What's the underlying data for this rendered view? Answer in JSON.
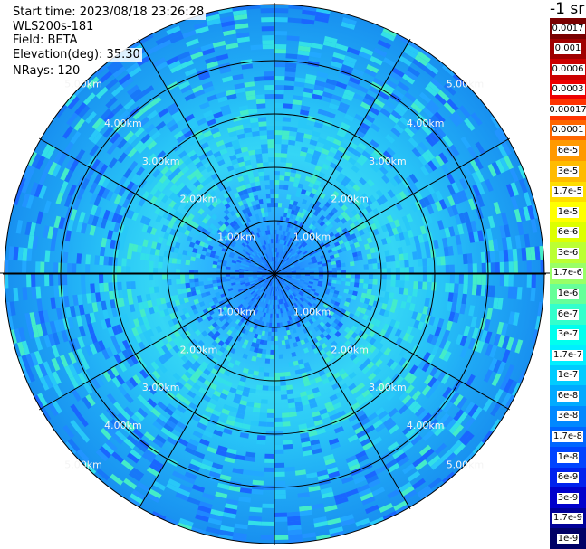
{
  "info": {
    "start_time": "Start time: 2023/08/18 23:26:28",
    "site": "WLS200s-181",
    "field": "Field: BETA",
    "elevation": "Elevation(deg): 35.30",
    "nrays": "NRays: 120"
  },
  "colorbar": {
    "unit": "-1 sr",
    "labels": [
      "0.0017",
      "0.001",
      "0.0006",
      "0.0003",
      "0.00017",
      "0.0001",
      "6e-5",
      "3e-5",
      "1.7e-5",
      "1e-5",
      "6e-6",
      "3e-6",
      "1.7e-6",
      "1e-6",
      "6e-7",
      "3e-7",
      "1.7e-7",
      "1e-7",
      "6e-8",
      "3e-8",
      "1.7e-8",
      "1e-8",
      "6e-9",
      "3e-9",
      "1.7e-9",
      "1e-9"
    ],
    "colors": [
      "#7a0000",
      "#a00000",
      "#cc0000",
      "#ee0000",
      "#ff3300",
      "#ff6600",
      "#ff9900",
      "#ffbb00",
      "#ffdd00",
      "#ffff00",
      "#ddff00",
      "#bbff33",
      "#99ff66",
      "#66ff99",
      "#33ffcc",
      "#00ffee",
      "#00eeff",
      "#00ccff",
      "#00aaff",
      "#0088ff",
      "#0066ff",
      "#0044ff",
      "#0022ee",
      "#0000cc",
      "#000099",
      "#000066"
    ]
  },
  "range_rings": {
    "labels": [
      "1.00km",
      "2.00km",
      "3.00km",
      "4.00km",
      "5.00km"
    ]
  }
}
